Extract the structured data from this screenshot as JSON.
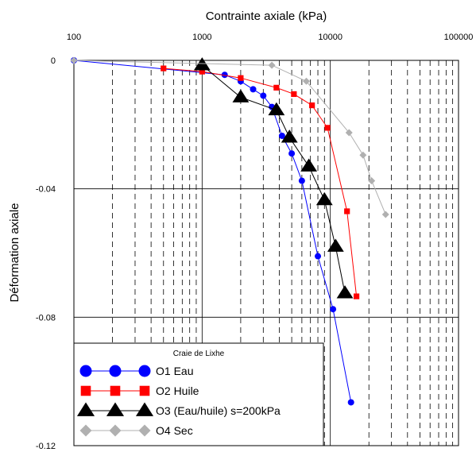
{
  "chart_data": {
    "type": "line",
    "xlabel": "Contrainte axiale (kPa)",
    "ylabel": "Déformation axiale",
    "x_scale": "log",
    "xlim": [
      100,
      100000
    ],
    "ylim": [
      -0.12,
      0
    ],
    "x_ticks": [
      100,
      1000,
      10000,
      100000
    ],
    "x_tick_labels": [
      "100",
      "1000",
      "10000",
      "100000"
    ],
    "y_ticks": [
      0,
      -0.04,
      -0.08,
      -0.12
    ],
    "y_tick_labels": [
      "0",
      "-0.04",
      "-0.08",
      "-0.12"
    ],
    "grid": "major solid, minor dashed vertical",
    "legend_title": "Craie de Lixhe",
    "legend_position": "bottom-left",
    "series": [
      {
        "name": "O1 Eau",
        "color": "#0000ff",
        "marker": "circle",
        "x": [
          100,
          1500,
          2000,
          2500,
          3000,
          3500,
          4200,
          5000,
          6000,
          8000,
          10500,
          14500
        ],
        "y": [
          0,
          -0.0045,
          -0.0065,
          -0.009,
          -0.011,
          -0.0145,
          -0.0235,
          -0.029,
          -0.0375,
          -0.061,
          -0.0775,
          -0.1065
        ]
      },
      {
        "name": "O2 Huile",
        "color": "#ff0000",
        "marker": "square",
        "x": [
          500,
          1000,
          2000,
          3800,
          5200,
          7200,
          9500,
          13500,
          16000
        ],
        "y": [
          -0.0025,
          -0.0035,
          -0.0055,
          -0.0085,
          -0.0105,
          -0.014,
          -0.021,
          -0.047,
          -0.0735
        ]
      },
      {
        "name": "O3 (Eau/huile) s=200kPa",
        "color": "#000000",
        "marker": "triangle",
        "x": [
          1000,
          2000,
          3800,
          4800,
          6800,
          9000,
          11000,
          13000
        ],
        "y": [
          -0.0015,
          -0.0115,
          -0.0155,
          -0.024,
          -0.033,
          -0.0435,
          -0.058,
          -0.0725
        ]
      },
      {
        "name": "O4 Sec",
        "color": "#b0b0b0",
        "marker": "diamond",
        "x": [
          100,
          3500,
          6500,
          14000,
          18000,
          21000,
          27000
        ],
        "y": [
          0,
          -0.0015,
          -0.0065,
          -0.0225,
          -0.0295,
          -0.0375,
          -0.048
        ]
      }
    ]
  }
}
